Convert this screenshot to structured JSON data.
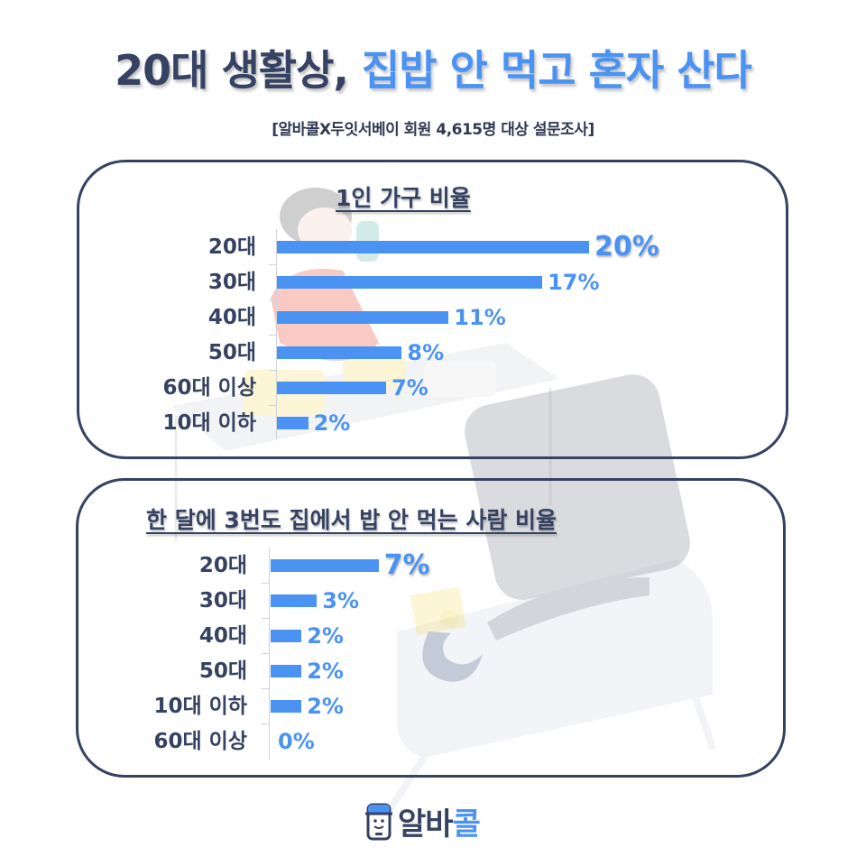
{
  "header": {
    "title_part1": "20대 생활상,",
    "title_part2": "집밥 안 먹고 혼자 산다",
    "subtitle": "[알바콜X두잇서베이 회원 4,615명 대상 설문조사]"
  },
  "colors": {
    "dark": "#354262",
    "accent": "#4a93f3",
    "axis": "#cfd3d9"
  },
  "chart_data": [
    {
      "type": "bar",
      "orientation": "horizontal",
      "title": "1인 가구 비율",
      "categories": [
        "20대",
        "30대",
        "40대",
        "50대",
        "60대 이상",
        "10대 이하"
      ],
      "values": [
        20,
        17,
        11,
        8,
        7,
        2
      ],
      "labels": [
        "20%",
        "17%",
        "11%",
        "8%",
        "7%",
        "2%"
      ],
      "xlabel": "",
      "ylabel": "",
      "unit": "%",
      "grid": false,
      "legend": null
    },
    {
      "type": "bar",
      "orientation": "horizontal",
      "title": "한 달에 3번도 집에서 밥 안 먹는 사람 비율",
      "categories": [
        "20대",
        "30대",
        "40대",
        "50대",
        "10대 이하",
        "60대 이상"
      ],
      "values": [
        7,
        3,
        2,
        2,
        2,
        0
      ],
      "labels": [
        "7%",
        "3%",
        "2%",
        "2%",
        "2%",
        "0%"
      ],
      "xlabel": "",
      "ylabel": "",
      "unit": "%",
      "grid": false,
      "legend": null
    }
  ],
  "logo": {
    "icon": "phone-smile-icon",
    "text_part1": "알바",
    "text_part2": "콜"
  }
}
